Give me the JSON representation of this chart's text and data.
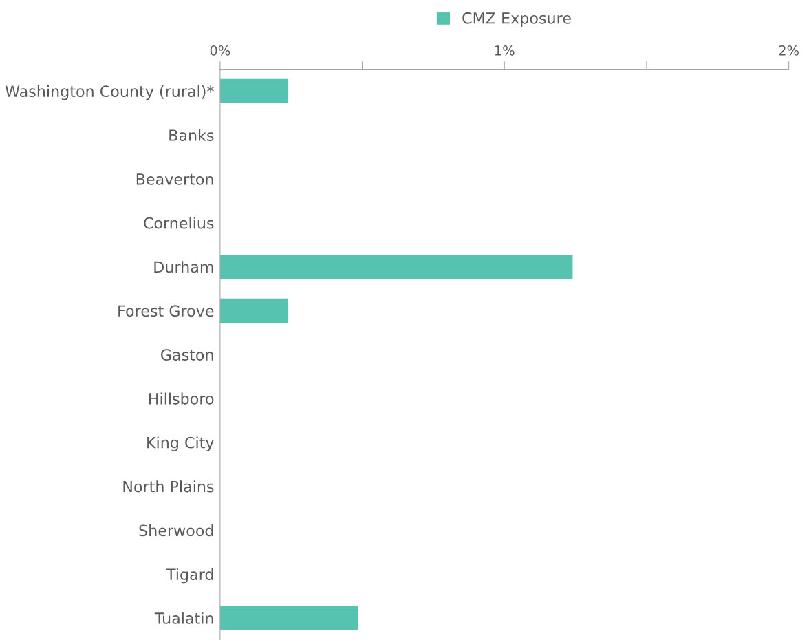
{
  "chart_data": {
    "type": "bar",
    "orientation": "horizontal",
    "categories": [
      "Washington County (rural)*",
      "Banks",
      "Beaverton",
      "Cornelius",
      "Durham",
      "Forest Grove",
      "Gaston",
      "Hillsboro",
      "King City",
      "North Plains",
      "Sherwood",
      "Tigard",
      "Tualatin"
    ],
    "series": [
      {
        "name": "CMZ Exposure",
        "color": "#56c2b0",
        "values": [
          0.24,
          0,
          0,
          0,
          1.24,
          0.24,
          0,
          0,
          0,
          0,
          0,
          0,
          0.485
        ]
      }
    ],
    "xlim": [
      0,
      2
    ],
    "xticks": [
      {
        "value": 0,
        "label": "0%"
      },
      {
        "value": 0.5,
        "label": null
      },
      {
        "value": 1,
        "label": "1%"
      },
      {
        "value": 1.5,
        "label": null
      },
      {
        "value": 2,
        "label": "2%"
      }
    ],
    "legend": "top",
    "grid": false
  }
}
